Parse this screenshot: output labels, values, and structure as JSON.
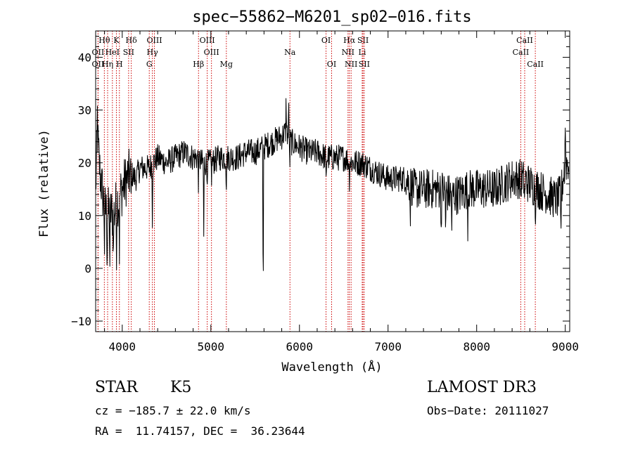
{
  "chart_data": {
    "type": "line",
    "title": "spec−55862−M6201_sp02−016.fits",
    "xlabel": "Wavelength (Å)",
    "ylabel": "Flux (relative)",
    "xlim": [
      3700,
      9050
    ],
    "ylim": [
      -12,
      45
    ],
    "xticks": [
      4000,
      5000,
      6000,
      7000,
      8000,
      9000
    ],
    "yticks": [
      -10,
      0,
      10,
      20,
      30,
      40
    ],
    "xtick_labels": [
      "4000",
      "5000",
      "6000",
      "7000",
      "8000",
      "9000"
    ],
    "ytick_labels": [
      "−10",
      "0",
      "10",
      "20",
      "30",
      "40"
    ],
    "spectrum_anchors": [
      [
        3700,
        15
      ],
      [
        3720,
        25
      ],
      [
        3750,
        18
      ],
      [
        3780,
        14
      ],
      [
        3800,
        12
      ],
      [
        3830,
        10
      ],
      [
        3860,
        11
      ],
      [
        3900,
        10
      ],
      [
        3950,
        13
      ],
      [
        4000,
        15
      ],
      [
        4050,
        17
      ],
      [
        4100,
        18
      ],
      [
        4150,
        17
      ],
      [
        4200,
        19
      ],
      [
        4300,
        19
      ],
      [
        4400,
        21
      ],
      [
        4500,
        20
      ],
      [
        4600,
        21
      ],
      [
        4700,
        22
      ],
      [
        4800,
        21
      ],
      [
        4850,
        21
      ],
      [
        4900,
        20
      ],
      [
        4950,
        20
      ],
      [
        5000,
        20
      ],
      [
        5100,
        21
      ],
      [
        5200,
        21
      ],
      [
        5300,
        21
      ],
      [
        5400,
        22
      ],
      [
        5500,
        22
      ],
      [
        5600,
        23
      ],
      [
        5700,
        24
      ],
      [
        5800,
        25
      ],
      [
        5850,
        26
      ],
      [
        5900,
        24
      ],
      [
        6000,
        23
      ],
      [
        6100,
        22
      ],
      [
        6200,
        22
      ],
      [
        6300,
        21
      ],
      [
        6400,
        21
      ],
      [
        6500,
        21
      ],
      [
        6600,
        20
      ],
      [
        6700,
        20
      ],
      [
        6800,
        19
      ],
      [
        6900,
        18
      ],
      [
        7000,
        17
      ],
      [
        7100,
        17
      ],
      [
        7200,
        17
      ],
      [
        7300,
        15
      ],
      [
        7400,
        15
      ],
      [
        7500,
        15
      ],
      [
        7600,
        15
      ],
      [
        7700,
        14
      ],
      [
        7800,
        14
      ],
      [
        7900,
        15
      ],
      [
        8000,
        15
      ],
      [
        8100,
        15
      ],
      [
        8200,
        15
      ],
      [
        8300,
        16
      ],
      [
        8400,
        17
      ],
      [
        8500,
        17
      ],
      [
        8600,
        16
      ],
      [
        8700,
        15
      ],
      [
        8800,
        14
      ],
      [
        8900,
        13
      ],
      [
        8950,
        14
      ],
      [
        9000,
        20
      ]
    ],
    "absorption_features": [
      [
        3800,
        -8
      ],
      [
        3830,
        -9
      ],
      [
        3860,
        -10
      ],
      [
        3900,
        -8
      ],
      [
        3935,
        -9
      ],
      [
        3968,
        -10
      ],
      [
        4101,
        -5
      ],
      [
        4340,
        -10
      ],
      [
        4861,
        -5
      ],
      [
        4920,
        -14
      ],
      [
        4957,
        -3
      ],
      [
        5007,
        -3
      ],
      [
        5175,
        -6
      ],
      [
        5590,
        -32
      ],
      [
        5890,
        -6
      ],
      [
        6300,
        -5
      ],
      [
        6563,
        -4
      ],
      [
        7250,
        -7
      ],
      [
        7600,
        -8
      ],
      [
        7650,
        -9
      ],
      [
        7720,
        -7
      ],
      [
        7900,
        -6
      ],
      [
        8190,
        -5
      ],
      [
        8498,
        -4
      ],
      [
        8542,
        -5
      ],
      [
        8662,
        -5
      ],
      [
        8950,
        -8
      ]
    ],
    "emission_features": [
      [
        5850,
        7
      ],
      [
        5880,
        6
      ],
      [
        3720,
        4
      ],
      [
        9000,
        8
      ]
    ],
    "noise_amplitude": 2.6,
    "line_markers": [
      {
        "label": "Hθ",
        "wavelength": 3798,
        "row": 0
      },
      {
        "label": "K",
        "wavelength": 3934,
        "row": 0
      },
      {
        "label": "Hδ",
        "wavelength": 4102,
        "row": 0
      },
      {
        "label": "OIII",
        "wavelength": 4363,
        "row": 0
      },
      {
        "label": "OIII",
        "wavelength": 4959,
        "row": 0
      },
      {
        "label": "OI",
        "wavelength": 6300,
        "row": 0
      },
      {
        "label": "Hα",
        "wavelength": 6563,
        "row": 0
      },
      {
        "label": "SII",
        "wavelength": 6717,
        "row": 0
      },
      {
        "label": "CaII",
        "wavelength": 8542,
        "row": 0
      },
      {
        "label": "OII",
        "wavelength": 3727,
        "row": 1
      },
      {
        "label": "HeI",
        "wavelength": 3889,
        "row": 1
      },
      {
        "label": "SII",
        "wavelength": 4072,
        "row": 1
      },
      {
        "label": "Hγ",
        "wavelength": 4340,
        "row": 1
      },
      {
        "label": "OIII",
        "wavelength": 5007,
        "row": 1
      },
      {
        "label": "Na",
        "wavelength": 5893,
        "row": 1
      },
      {
        "label": "NII",
        "wavelength": 6548,
        "row": 1
      },
      {
        "label": "Li",
        "wavelength": 6708,
        "row": 1
      },
      {
        "label": "CaII",
        "wavelength": 8498,
        "row": 1
      },
      {
        "label": "OII",
        "wavelength": 3727,
        "row": 2
      },
      {
        "label": "Hη",
        "wavelength": 3835,
        "row": 2
      },
      {
        "label": "H",
        "wavelength": 3968,
        "row": 2
      },
      {
        "label": "G",
        "wavelength": 4305,
        "row": 2
      },
      {
        "label": "Hβ",
        "wavelength": 4861,
        "row": 2
      },
      {
        "label": "Mg",
        "wavelength": 5175,
        "row": 2
      },
      {
        "label": "OI",
        "wavelength": 6363,
        "row": 2
      },
      {
        "label": "NII",
        "wavelength": 6583,
        "row": 2
      },
      {
        "label": "SII",
        "wavelength": 6731,
        "row": 2
      },
      {
        "label": "CaII",
        "wavelength": 8662,
        "row": 2
      }
    ],
    "colors": {
      "axis": "#000000",
      "spectrum": "#000000",
      "marker_line": "#cc0000",
      "background": "#ffffff"
    }
  },
  "info": {
    "object_class": "STAR",
    "subclass": "K5",
    "survey": "LAMOST DR3",
    "redshift": "cz = −185.7 ± 22.0 km/s",
    "obs_date": "Obs−Date: 20111027",
    "coords": "RA =  11.74157, DEC =  36.23644"
  }
}
